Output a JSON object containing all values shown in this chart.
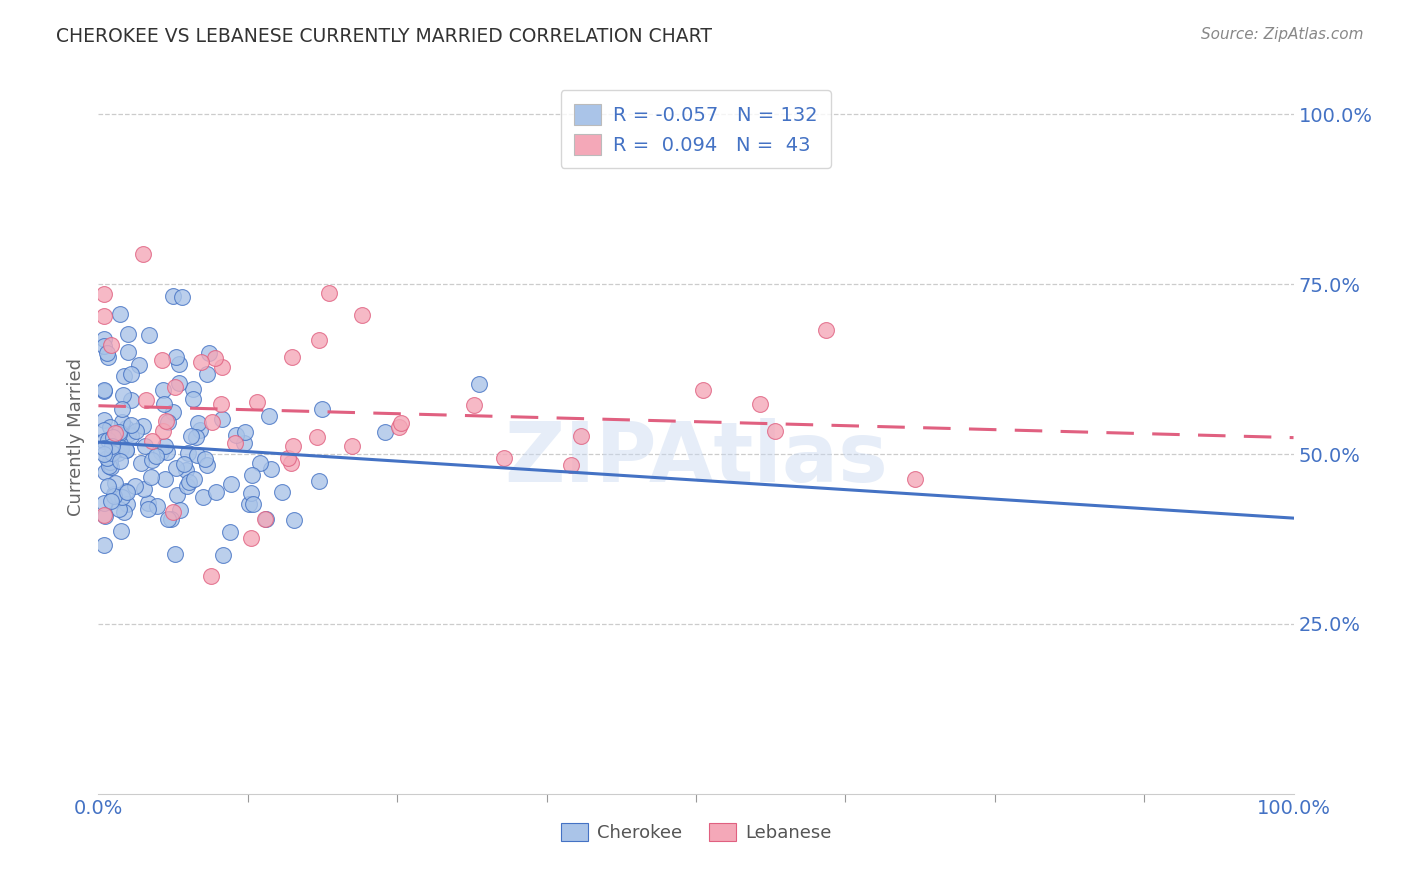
{
  "title": "CHEROKEE VS LEBANESE CURRENTLY MARRIED CORRELATION CHART",
  "source": "Source: ZipAtlas.com",
  "ylabel": "Currently Married",
  "legend_cherokee": "Cherokee",
  "legend_lebanese": "Lebanese",
  "cherokee_R": -0.057,
  "cherokee_N": 132,
  "lebanese_R": 0.094,
  "lebanese_N": 43,
  "cherokee_color": "#aac4e8",
  "lebanese_color": "#f4a8b8",
  "cherokee_line_color": "#4472c4",
  "lebanese_line_color": "#e06080",
  "axis_color": "#4472c4",
  "watermark": "ZIPAtlas",
  "yticks": [
    0.25,
    0.5,
    0.75,
    1.0
  ],
  "ytick_labels": [
    "25.0%",
    "50.0%",
    "75.0%",
    "100.0%"
  ]
}
